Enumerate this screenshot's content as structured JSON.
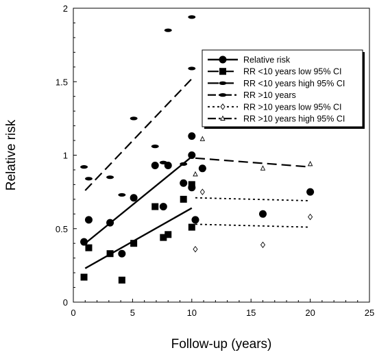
{
  "chart_data": {
    "type": "scatter",
    "xlabel": "Follow-up (years)",
    "ylabel": "Relative risk",
    "xlim": [
      0,
      25
    ],
    "ylim": [
      0,
      2
    ],
    "xticks": [
      "0",
      "5",
      "10",
      "15",
      "20",
      "25"
    ],
    "yticks": [
      "0",
      "0.5",
      "1",
      "1.5",
      "2"
    ],
    "grid": false,
    "legend_position": "top-right",
    "series": [
      {
        "name": "Relative risk",
        "marker": "circle",
        "color": "#000000",
        "points": [
          [
            0.9,
            0.41
          ],
          [
            1.3,
            0.56
          ],
          [
            3.1,
            0.54
          ],
          [
            4.1,
            0.33
          ],
          [
            5.1,
            0.71
          ],
          [
            6.9,
            0.93
          ],
          [
            7.6,
            0.65
          ],
          [
            8.0,
            0.93
          ],
          [
            9.3,
            0.81
          ],
          [
            10.0,
            1.13
          ],
          [
            10.0,
            1.0
          ],
          [
            10.0,
            0.78
          ],
          [
            10.3,
            0.56
          ],
          [
            10.9,
            0.91
          ],
          [
            16.0,
            0.6
          ],
          [
            20.0,
            0.75
          ]
        ]
      },
      {
        "name": "RR <10 years low 95% CI",
        "marker": "square",
        "color": "#000000",
        "points": [
          [
            0.9,
            0.17
          ],
          [
            1.3,
            0.37
          ],
          [
            3.1,
            0.33
          ],
          [
            4.1,
            0.15
          ],
          [
            5.1,
            0.4
          ],
          [
            6.9,
            0.65
          ],
          [
            7.6,
            0.44
          ],
          [
            8.0,
            0.46
          ],
          [
            9.3,
            0.7
          ],
          [
            10.0,
            0.8
          ],
          [
            10.0,
            0.51
          ]
        ]
      },
      {
        "name": "RR <10 years high 95% CI",
        "marker": "dash",
        "color": "#000000",
        "points": [
          [
            0.9,
            0.92
          ],
          [
            1.3,
            0.84
          ],
          [
            3.1,
            0.85
          ],
          [
            4.1,
            0.73
          ],
          [
            5.1,
            1.25
          ],
          [
            6.9,
            1.06
          ],
          [
            7.6,
            0.95
          ],
          [
            8.0,
            1.85
          ],
          [
            9.3,
            0.94
          ],
          [
            10.0,
            1.94
          ],
          [
            10.0,
            1.59
          ]
        ]
      },
      {
        "name": "RR >10 years",
        "marker": "dash",
        "color": "#000000",
        "points": [
          [
            10.3,
            0.56
          ],
          [
            10.9,
            0.91
          ],
          [
            16.0,
            0.6
          ],
          [
            20.0,
            0.75
          ]
        ]
      },
      {
        "name": "RR >10 years low 95% CI",
        "marker": "diamond",
        "color": "#000000",
        "points": [
          [
            10.3,
            0.36
          ],
          [
            10.9,
            0.75
          ],
          [
            16.0,
            0.39
          ],
          [
            20.0,
            0.58
          ]
        ]
      },
      {
        "name": "RR >10 years high 95% CI",
        "marker": "triangle",
        "color": "#000000",
        "points": [
          [
            10.3,
            0.87
          ],
          [
            10.9,
            1.11
          ],
          [
            16.0,
            0.91
          ],
          [
            20.0,
            0.94
          ]
        ]
      }
    ],
    "trend_lines": [
      {
        "series": "Relative risk",
        "style": "solid",
        "from": [
          1.0,
          0.4
        ],
        "to": [
          10.0,
          0.99
        ]
      },
      {
        "series": "RR <10 years low 95% CI",
        "style": "solid",
        "from": [
          1.0,
          0.23
        ],
        "to": [
          10.0,
          0.64
        ]
      },
      {
        "series": "RR <10 years high 95% CI",
        "style": "dashed",
        "from": [
          1.0,
          0.76
        ],
        "to": [
          10.0,
          1.52
        ]
      },
      {
        "series": "RR >10 years",
        "style": "dashed",
        "from": [
          10.3,
          0.98
        ],
        "to": [
          20.0,
          0.92
        ]
      },
      {
        "series": "RR >10 years low 95% CI",
        "style": "dotted",
        "from": [
          10.3,
          0.53
        ],
        "to": [
          20.0,
          0.51
        ]
      },
      {
        "series": "RR >10 years high 95% CI",
        "style": "dotted",
        "from": [
          10.3,
          0.71
        ],
        "to": [
          20.0,
          0.69
        ]
      }
    ],
    "legend": [
      {
        "label": "Relative risk",
        "line": "solid",
        "marker": "circle"
      },
      {
        "label": "RR <10 years low 95% CI",
        "line": "longdash",
        "marker": "square"
      },
      {
        "label": "RR <10 years high 95% CI",
        "line": "longdash",
        "marker": "dash"
      },
      {
        "label": "RR >10 years",
        "line": "dashdot",
        "marker": "dash"
      },
      {
        "label": "RR >10 years low 95% CI",
        "line": "dotted",
        "marker": "diamond"
      },
      {
        "label": "RR >10 years high 95% CI",
        "line": "dashdot",
        "marker": "triangle"
      }
    ]
  }
}
